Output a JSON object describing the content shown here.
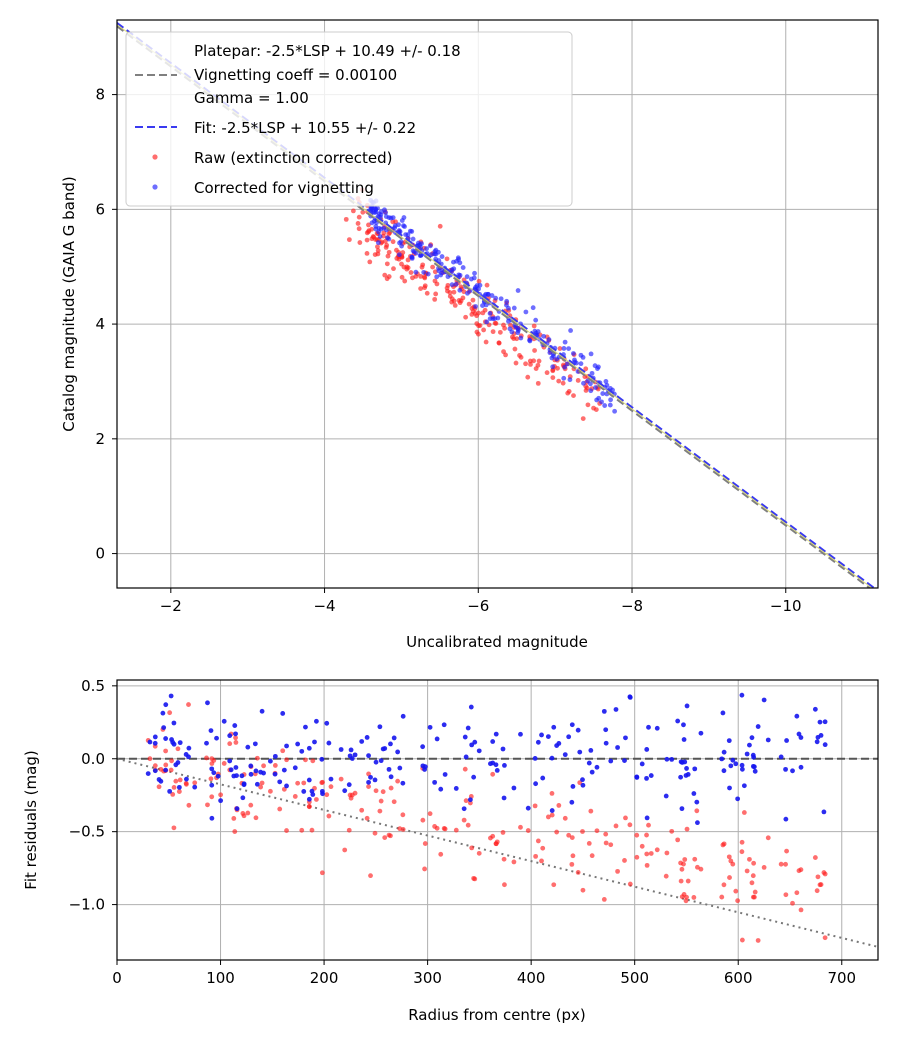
{
  "chart_data": [
    {
      "type": "scatter",
      "id": "calibration",
      "xlabel": "Uncalibrated magnitude",
      "ylabel": "Catalog magnitude (GAIA G band)",
      "xlim": [
        -1.3,
        -11.2
      ],
      "ylim": [
        9.3,
        -0.6
      ],
      "x_reversed": true,
      "y_reversed": true,
      "grid": true,
      "xticks": [
        -2,
        -4,
        -6,
        -8,
        -10
      ],
      "xtick_labels": [
        "−2",
        "−4",
        "−6",
        "−8",
        "−10"
      ],
      "yticks": [
        0,
        2,
        4,
        6,
        8
      ],
      "ytick_labels": [
        "0",
        "2",
        "4",
        "6",
        "8"
      ],
      "legend_position": "upper-left",
      "legend": [
        {
          "kind": "blank",
          "label": "Platepar: -2.5*LSP + 10.49 +/- 0.18"
        },
        {
          "kind": "line",
          "style": "dashed",
          "color": "#808080",
          "label": "Vignetting coeff = 0.00100"
        },
        {
          "kind": "blank",
          "label": "Gamma = 1.00"
        },
        {
          "kind": "line",
          "style": "dashed",
          "color": "#3a3af0",
          "label": "Fit: -2.5*LSP + 10.55 +/- 0.22"
        },
        {
          "kind": "point",
          "color": "#ff3030",
          "label": "Raw (extinction corrected)"
        },
        {
          "kind": "point",
          "color": "#3030ff",
          "label": "Corrected for vignetting"
        }
      ],
      "lines": [
        {
          "name": "Platepar",
          "slope": 1.0,
          "intercept": 10.49,
          "color": "#808080",
          "style": "dashed"
        },
        {
          "name": "Fit",
          "slope": 1.0,
          "intercept": 10.55,
          "color": "#3a3af0",
          "style": "dashed"
        },
        {
          "name": "Reference",
          "slope": 1.0,
          "intercept": 10.52,
          "color": "#d8d860",
          "style": "solid-thin"
        }
      ],
      "series": [
        {
          "name": "Raw (extinction corrected)",
          "color": "#ff2020",
          "x_range": [
            -4.6,
            -7.5
          ],
          "offset": 10.55,
          "x_bias": 0.15,
          "y_bias": -0.3,
          "spread": 0.28,
          "count": 260
        },
        {
          "name": "Corrected for vignetting",
          "color": "#2020ff",
          "x_range": [
            -4.6,
            -7.8
          ],
          "offset": 10.55,
          "x_bias": 0.0,
          "y_bias": 0.0,
          "spread": 0.2,
          "count": 260
        }
      ]
    },
    {
      "type": "scatter",
      "id": "residuals",
      "xlabel": "Radius from centre (px)",
      "ylabel": "Fit residuals (mag)",
      "xlim": [
        0,
        735
      ],
      "ylim": [
        -1.38,
        0.54
      ],
      "grid": true,
      "xticks": [
        0,
        100,
        200,
        300,
        400,
        500,
        600,
        700
      ],
      "xtick_labels": [
        "0",
        "100",
        "200",
        "300",
        "400",
        "500",
        "600",
        "700"
      ],
      "yticks": [
        0.5,
        0.0,
        -0.5,
        -1.0
      ],
      "ytick_labels": [
        "0.5",
        "0.0",
        "−0.5",
        "−1.0"
      ],
      "reference_lines": [
        {
          "name": "zero",
          "type": "hline",
          "y": 0,
          "color": "#555555",
          "style": "dashed"
        },
        {
          "name": "vignetting model",
          "type": "line",
          "from": [
            0,
            0
          ],
          "to": [
            735,
            -1.29
          ],
          "color": "#777777",
          "style": "dotted"
        }
      ],
      "series": [
        {
          "name": "Raw (extinction corrected)",
          "color": "#ff2020",
          "trend_start": 0.0,
          "trend_slope": -0.00135,
          "spread": 0.17,
          "count": 250
        },
        {
          "name": "Corrected for vignetting",
          "color": "#1515ee",
          "trend_start": 0.0,
          "trend_slope": 0.0,
          "spread": 0.2,
          "count": 250
        }
      ]
    }
  ]
}
